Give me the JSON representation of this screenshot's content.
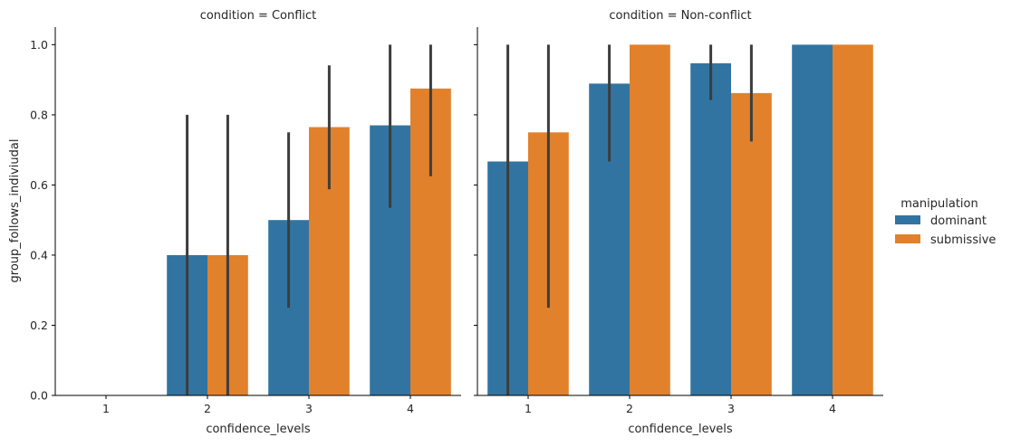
{
  "chart_data": {
    "type": "bar",
    "ylabel": "group_follows_indiviudal",
    "xlabel": "confidence_levels",
    "ylim": [
      0,
      1.05
    ],
    "yticks": [
      0.0,
      0.2,
      0.4,
      0.6,
      0.8,
      1.0
    ],
    "categories": [
      "1",
      "2",
      "3",
      "4"
    ],
    "legend": {
      "title": "manipulation",
      "placement": "right",
      "entries": [
        {
          "name": "dominant",
          "color": "#3274a1"
        },
        {
          "name": "submissive",
          "color": "#e1812c"
        }
      ]
    },
    "error_bar_color": "#3d3d3d",
    "panels": [
      {
        "title": "condition = Conflict",
        "series": [
          {
            "name": "dominant",
            "values": [
              null,
              0.4,
              0.5,
              0.77
            ],
            "ci_low": [
              null,
              0.0,
              0.25,
              0.535
            ],
            "ci_high": [
              null,
              0.8,
              0.75,
              1.0
            ]
          },
          {
            "name": "submissive",
            "values": [
              null,
              0.4,
              0.765,
              0.875
            ],
            "ci_low": [
              null,
              0.0,
              0.588,
              0.625
            ],
            "ci_high": [
              null,
              0.8,
              0.941,
              1.0
            ]
          }
        ]
      },
      {
        "title": "condition = Non-conflict",
        "series": [
          {
            "name": "dominant",
            "values": [
              0.667,
              0.889,
              0.947,
              1.0
            ],
            "ci_low": [
              0.0,
              0.667,
              0.842,
              1.0
            ],
            "ci_high": [
              1.0,
              1.0,
              1.0,
              1.0
            ]
          },
          {
            "name": "submissive",
            "values": [
              0.75,
              1.0,
              0.862,
              1.0
            ],
            "ci_low": [
              0.25,
              1.0,
              0.724,
              1.0
            ],
            "ci_high": [
              1.0,
              1.0,
              1.0,
              1.0
            ]
          }
        ]
      }
    ]
  }
}
